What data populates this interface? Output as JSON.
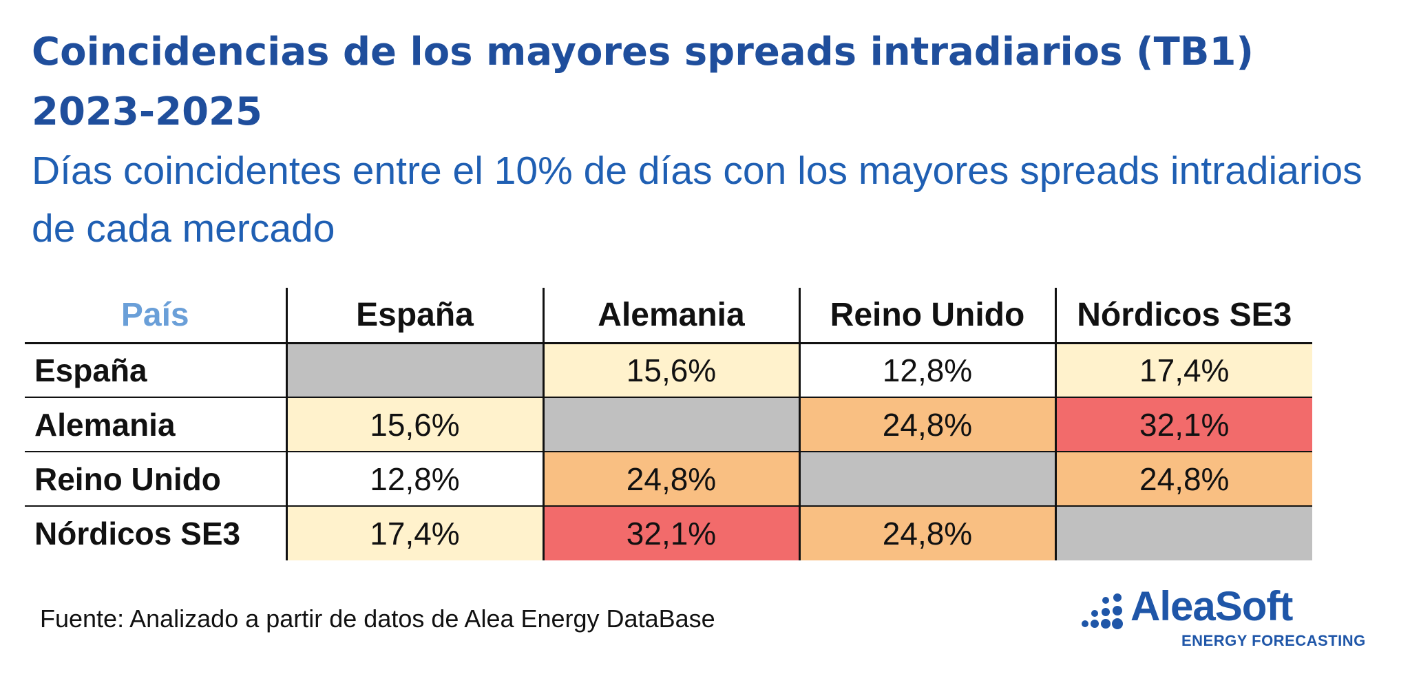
{
  "title": "Coincidencias de los mayores spreads intradiarios (TB1) 2023-2025",
  "subtitle": "Días coincidentes entre el 10% de días con los mayores spreads intradiarios de cada mercado",
  "source": "Fuente: Analizado a partir de datos de Alea Energy DataBase",
  "logo": {
    "name": "AleaSoft",
    "tagline": "ENERGY FORECASTING"
  },
  "colors": {
    "title": "#1f4e9c",
    "subtitle": "#1f5fb3",
    "corner_label": "#6a9fd8",
    "diagonal": "#c0c0c0",
    "plain": "#ffffff",
    "low": "#fff2cc",
    "mid": "#f9bf82",
    "high": "#f26b6b",
    "logo": "#1f56a8"
  },
  "chart_data": {
    "type": "heatmap",
    "corner_label": "País",
    "columns": [
      "España",
      "Alemania",
      "Reino Unido",
      "Nórdicos SE3"
    ],
    "rows": [
      {
        "label": "España",
        "values": [
          null,
          15.6,
          12.8,
          17.4
        ],
        "display": [
          "",
          "15,6%",
          "12,8%",
          "17,4%"
        ]
      },
      {
        "label": "Alemania",
        "values": [
          15.6,
          null,
          24.8,
          32.1
        ],
        "display": [
          "15,6%",
          "",
          "24,8%",
          "32,1%"
        ]
      },
      {
        "label": "Reino Unido",
        "values": [
          12.8,
          24.8,
          null,
          24.8
        ],
        "display": [
          "12,8%",
          "24,8%",
          "",
          "24,8%"
        ]
      },
      {
        "label": "Nórdicos SE3",
        "values": [
          17.4,
          32.1,
          24.8,
          null
        ],
        "display": [
          "17,4%",
          "32,1%",
          "24,8%",
          ""
        ]
      }
    ],
    "unit": "%",
    "diagonal": "empty"
  }
}
